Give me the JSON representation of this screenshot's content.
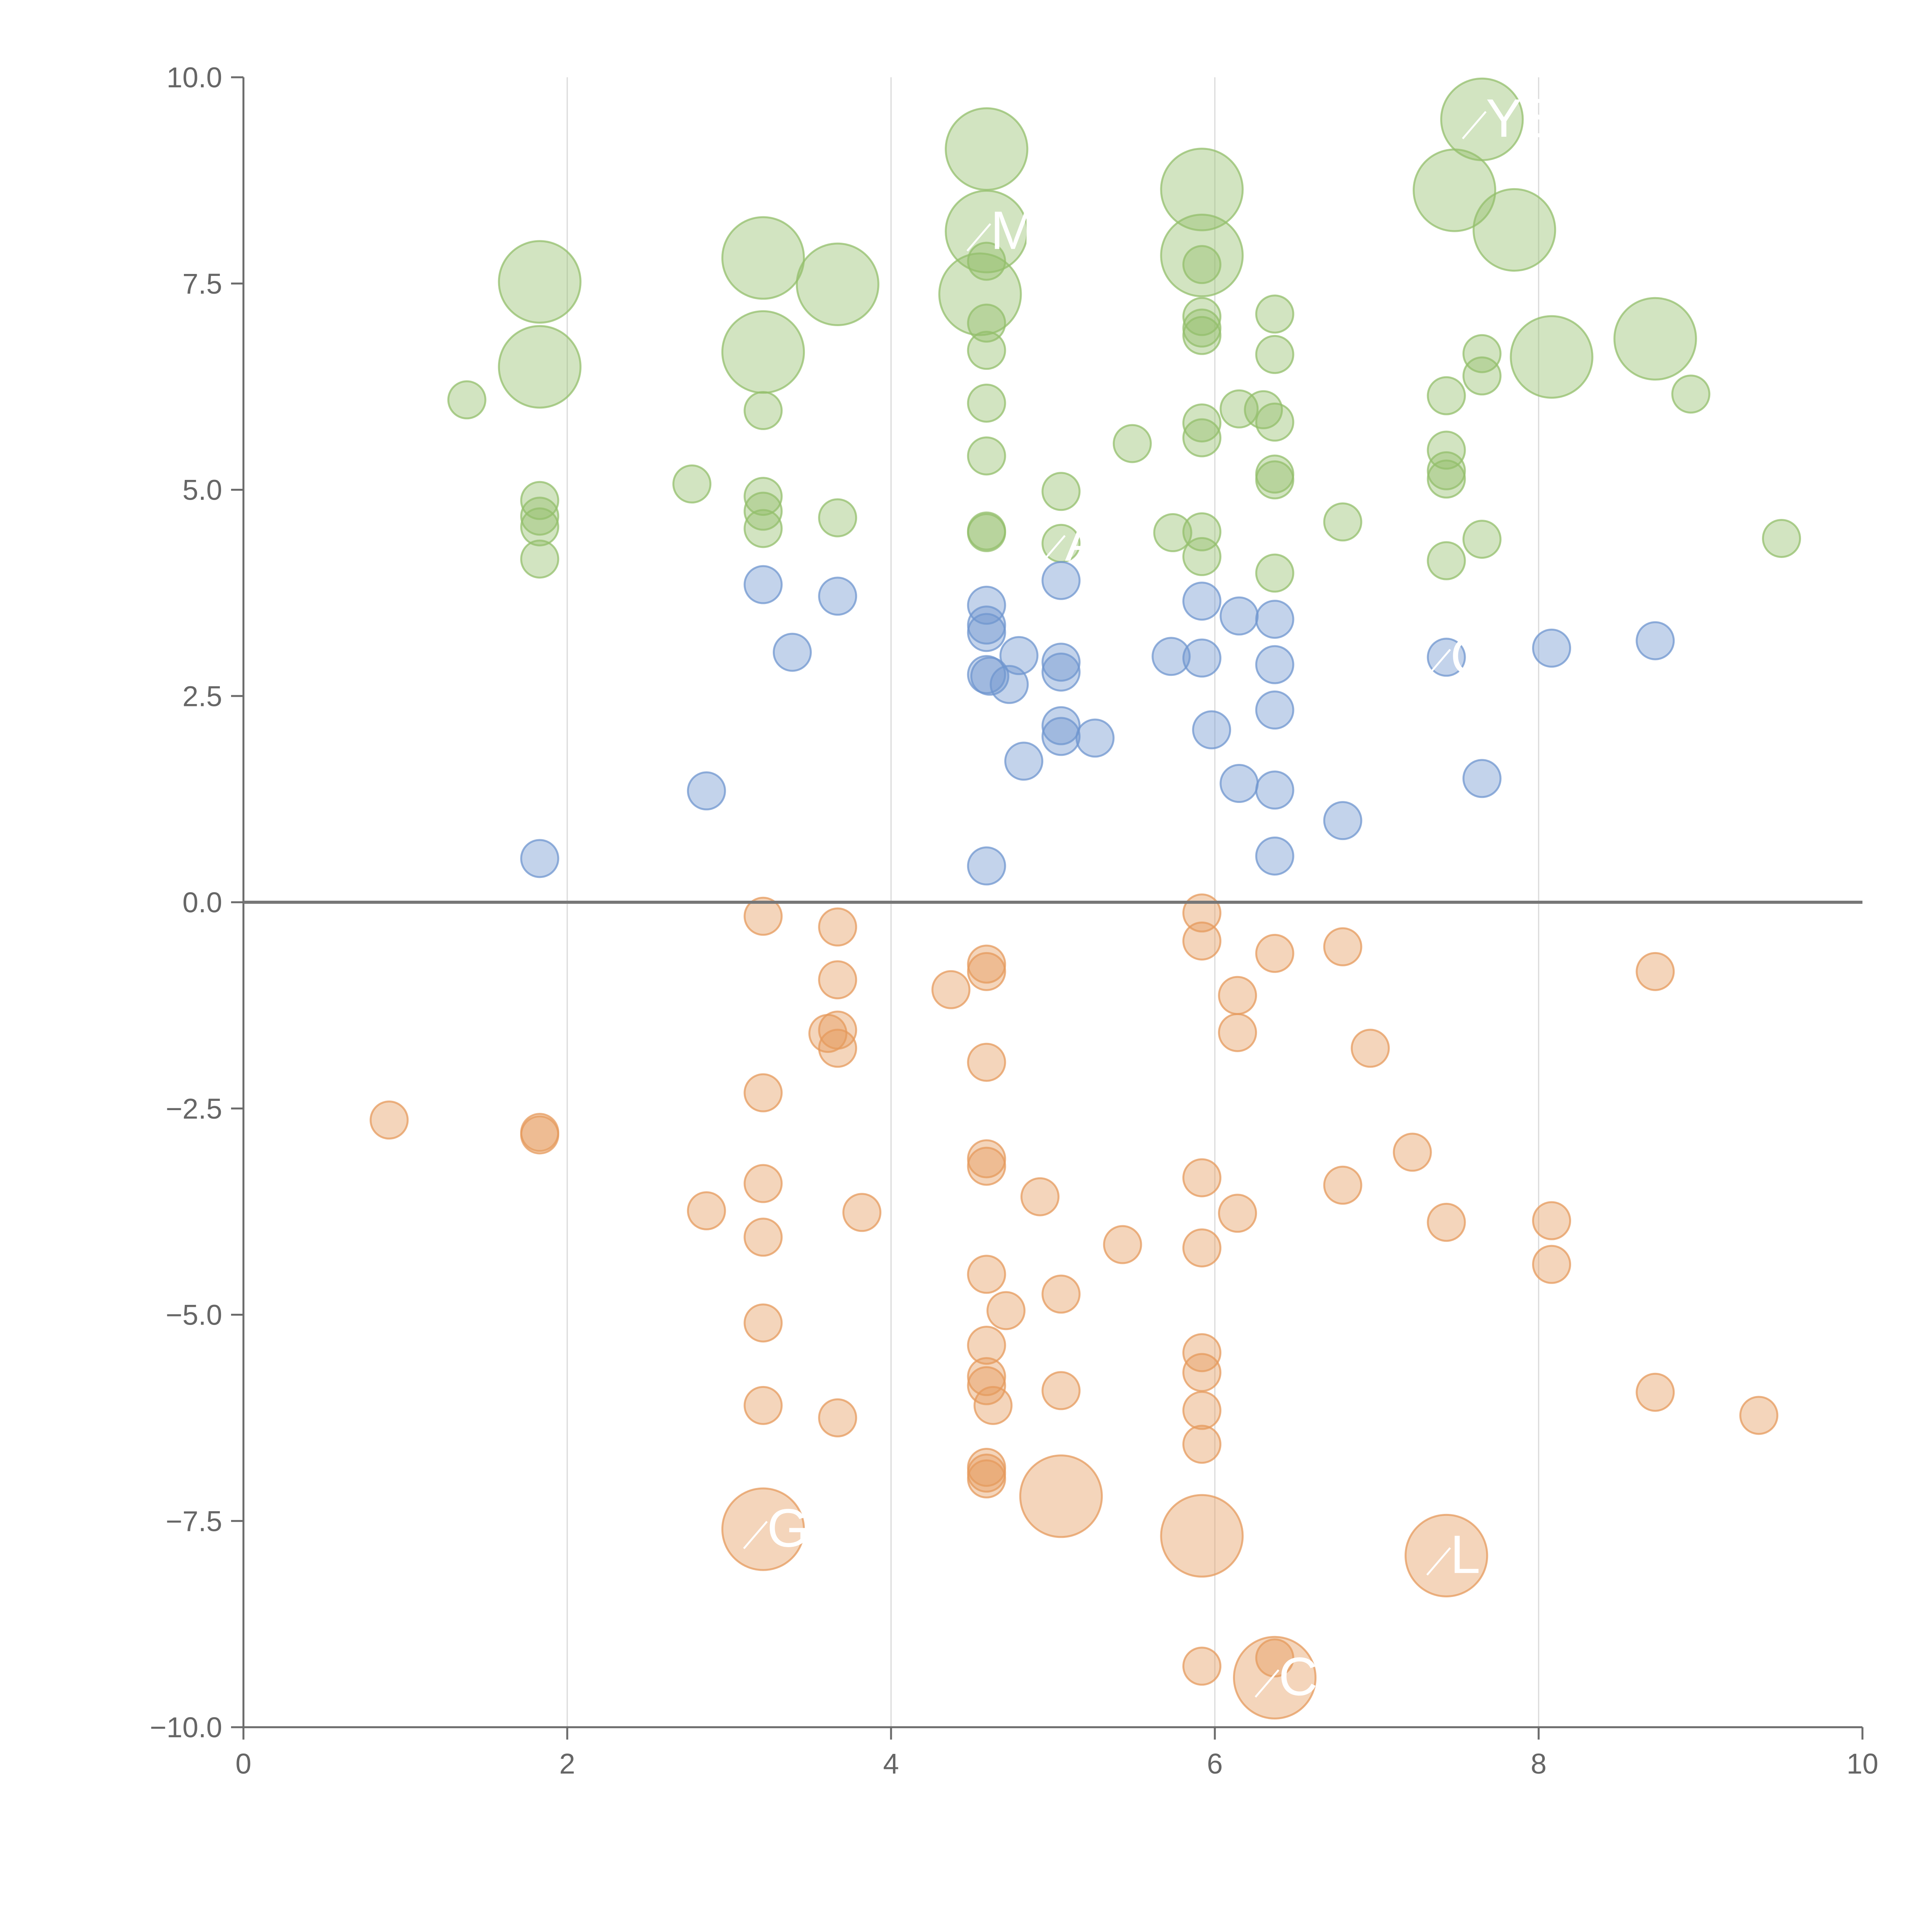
{
  "chart_data": {
    "type": "scatter",
    "variant": "bubble",
    "title": "",
    "xlabel": "",
    "ylabel": "",
    "xlim": [
      0,
      10
    ],
    "ylim": [
      -10,
      10
    ],
    "x_ticks": [
      0,
      2,
      4,
      6,
      8,
      10
    ],
    "x_tick_labels": [
      "0",
      "2",
      "4",
      "6",
      "8",
      "10"
    ],
    "y_ticks": [
      10,
      7.5,
      5,
      2.5,
      0,
      -2.5,
      -5,
      -7.5,
      -10
    ],
    "y_tick_labels": [
      "10.0",
      "7.5",
      "5.0",
      "2.5",
      "0.0",
      "−2.5",
      "−5.0",
      "−7.5",
      "−10.0"
    ],
    "vertical_gridlines_at": [
      2,
      4,
      6,
      8
    ],
    "reference_line_y": 0,
    "legend": "none",
    "colors": {
      "green": "#93bf6b",
      "blue": "#6f95cf",
      "orange": "#e59a5c"
    },
    "series": [
      {
        "name": "green",
        "color_key": "green",
        "points": [
          {
            "x": 1.83,
            "y": 7.52,
            "s": 2.2
          },
          {
            "x": 1.83,
            "y": 6.49,
            "s": 2.2
          },
          {
            "x": 1.38,
            "y": 6.09,
            "s": 1
          },
          {
            "x": 1.83,
            "y": 4.87,
            "s": 1
          },
          {
            "x": 1.83,
            "y": 4.68,
            "s": 1
          },
          {
            "x": 1.83,
            "y": 4.55,
            "s": 1
          },
          {
            "x": 1.83,
            "y": 4.16,
            "s": 1
          },
          {
            "x": 2.77,
            "y": 5.07,
            "s": 1
          },
          {
            "x": 3.21,
            "y": 7.81,
            "s": 2.2
          },
          {
            "x": 3.21,
            "y": 6.67,
            "s": 2.2
          },
          {
            "x": 3.67,
            "y": 7.49,
            "s": 2.2
          },
          {
            "x": 3.21,
            "y": 5.96,
            "s": 1
          },
          {
            "x": 3.21,
            "y": 4.92,
            "s": 1
          },
          {
            "x": 3.21,
            "y": 4.74,
            "s": 1
          },
          {
            "x": 3.21,
            "y": 4.53,
            "s": 1
          },
          {
            "x": 3.67,
            "y": 4.66,
            "s": 1
          },
          {
            "x": 4.59,
            "y": 9.13,
            "s": 2.2
          },
          {
            "x": 4.59,
            "y": 8.13,
            "s": 2.2
          },
          {
            "x": 4.55,
            "y": 7.37,
            "s": 2.2
          },
          {
            "x": 4.59,
            "y": 7.77,
            "s": 1
          },
          {
            "x": 4.59,
            "y": 7.02,
            "s": 1
          },
          {
            "x": 4.59,
            "y": 6.69,
            "s": 1
          },
          {
            "x": 4.59,
            "y": 6.05,
            "s": 1
          },
          {
            "x": 4.59,
            "y": 5.41,
            "s": 1
          },
          {
            "x": 4.59,
            "y": 4.5,
            "s": 1
          },
          {
            "x": 4.59,
            "y": 4.48,
            "s": 1
          },
          {
            "x": 5.05,
            "y": 4.98,
            "s": 1
          },
          {
            "x": 5.05,
            "y": 4.35,
            "s": 1
          },
          {
            "x": 5.49,
            "y": 5.56,
            "s": 1
          },
          {
            "x": 5.92,
            "y": 8.64,
            "s": 2.2
          },
          {
            "x": 5.92,
            "y": 7.84,
            "s": 2.2
          },
          {
            "x": 5.92,
            "y": 7.73,
            "s": 1
          },
          {
            "x": 5.92,
            "y": 7.1,
            "s": 1
          },
          {
            "x": 5.92,
            "y": 6.96,
            "s": 1
          },
          {
            "x": 5.92,
            "y": 6.87,
            "s": 1
          },
          {
            "x": 5.92,
            "y": 5.81,
            "s": 1
          },
          {
            "x": 5.92,
            "y": 5.63,
            "s": 1
          },
          {
            "x": 5.92,
            "y": 4.49,
            "s": 1
          },
          {
            "x": 5.92,
            "y": 4.19,
            "s": 1
          },
          {
            "x": 5.74,
            "y": 4.48,
            "s": 1
          },
          {
            "x": 6.15,
            "y": 5.98,
            "s": 1
          },
          {
            "x": 6.3,
            "y": 5.97,
            "s": 1
          },
          {
            "x": 6.37,
            "y": 7.13,
            "s": 1
          },
          {
            "x": 6.37,
            "y": 6.64,
            "s": 1
          },
          {
            "x": 6.37,
            "y": 5.82,
            "s": 1
          },
          {
            "x": 6.37,
            "y": 5.19,
            "s": 1
          },
          {
            "x": 6.37,
            "y": 5.12,
            "s": 1
          },
          {
            "x": 6.37,
            "y": 3.99,
            "s": 1
          },
          {
            "x": 6.79,
            "y": 4.61,
            "s": 1
          },
          {
            "x": 7.48,
            "y": 8.63,
            "s": 2.2
          },
          {
            "x": 7.65,
            "y": 9.49,
            "s": 2.2
          },
          {
            "x": 7.85,
            "y": 8.15,
            "s": 2.2
          },
          {
            "x": 8.08,
            "y": 6.61,
            "s": 2.2
          },
          {
            "x": 8.72,
            "y": 6.83,
            "s": 2.2
          },
          {
            "x": 7.43,
            "y": 6.14,
            "s": 1
          },
          {
            "x": 7.43,
            "y": 5.48,
            "s": 1
          },
          {
            "x": 7.43,
            "y": 5.23,
            "s": 1
          },
          {
            "x": 7.43,
            "y": 5.13,
            "s": 1
          },
          {
            "x": 7.43,
            "y": 4.14,
            "s": 1
          },
          {
            "x": 7.65,
            "y": 6.65,
            "s": 1
          },
          {
            "x": 7.65,
            "y": 6.38,
            "s": 1
          },
          {
            "x": 7.65,
            "y": 4.4,
            "s": 1
          },
          {
            "x": 8.94,
            "y": 6.16,
            "s": 1
          },
          {
            "x": 9.5,
            "y": 4.41,
            "s": 1
          }
        ]
      },
      {
        "name": "blue",
        "color_key": "blue",
        "points": [
          {
            "x": 1.83,
            "y": 0.53,
            "s": 1
          },
          {
            "x": 2.86,
            "y": 1.35,
            "s": 1
          },
          {
            "x": 3.21,
            "y": 3.85,
            "s": 1
          },
          {
            "x": 3.39,
            "y": 3.03,
            "s": 1
          },
          {
            "x": 3.67,
            "y": 3.71,
            "s": 1
          },
          {
            "x": 4.59,
            "y": 3.6,
            "s": 1
          },
          {
            "x": 4.59,
            "y": 3.36,
            "s": 1
          },
          {
            "x": 4.59,
            "y": 3.27,
            "s": 1
          },
          {
            "x": 4.59,
            "y": 2.76,
            "s": 1
          },
          {
            "x": 4.61,
            "y": 2.74,
            "s": 1
          },
          {
            "x": 4.59,
            "y": 0.44,
            "s": 1
          },
          {
            "x": 4.73,
            "y": 2.64,
            "s": 1
          },
          {
            "x": 4.79,
            "y": 2.99,
            "s": 1
          },
          {
            "x": 4.82,
            "y": 1.71,
            "s": 1
          },
          {
            "x": 5.05,
            "y": 3.9,
            "s": 1
          },
          {
            "x": 5.05,
            "y": 2.91,
            "s": 1
          },
          {
            "x": 5.05,
            "y": 2.79,
            "s": 1
          },
          {
            "x": 5.05,
            "y": 2.14,
            "s": 1
          },
          {
            "x": 5.05,
            "y": 2.01,
            "s": 1
          },
          {
            "x": 5.26,
            "y": 1.99,
            "s": 1
          },
          {
            "x": 5.73,
            "y": 2.98,
            "s": 1
          },
          {
            "x": 5.92,
            "y": 3.65,
            "s": 1
          },
          {
            "x": 5.92,
            "y": 2.96,
            "s": 1
          },
          {
            "x": 5.98,
            "y": 2.09,
            "s": 1
          },
          {
            "x": 6.15,
            "y": 3.47,
            "s": 1
          },
          {
            "x": 6.15,
            "y": 1.44,
            "s": 1
          },
          {
            "x": 6.37,
            "y": 3.43,
            "s": 1
          },
          {
            "x": 6.37,
            "y": 2.88,
            "s": 1
          },
          {
            "x": 6.37,
            "y": 2.33,
            "s": 1
          },
          {
            "x": 6.37,
            "y": 1.36,
            "s": 1
          },
          {
            "x": 6.37,
            "y": 0.56,
            "s": 1
          },
          {
            "x": 6.79,
            "y": 0.99,
            "s": 1
          },
          {
            "x": 7.43,
            "y": 2.97,
            "s": 1
          },
          {
            "x": 7.65,
            "y": 1.5,
            "s": 1
          },
          {
            "x": 8.08,
            "y": 3.08,
            "s": 1
          },
          {
            "x": 8.72,
            "y": 3.17,
            "s": 1
          }
        ]
      },
      {
        "name": "orange",
        "color_key": "orange",
        "points": [
          {
            "x": 0.9,
            "y": -2.64,
            "s": 1
          },
          {
            "x": 1.83,
            "y": -2.79,
            "s": 1
          },
          {
            "x": 1.83,
            "y": -2.82,
            "s": 1
          },
          {
            "x": 2.86,
            "y": -3.74,
            "s": 1
          },
          {
            "x": 3.21,
            "y": -0.17,
            "s": 1
          },
          {
            "x": 3.21,
            "y": -2.31,
            "s": 1
          },
          {
            "x": 3.21,
            "y": -3.41,
            "s": 1
          },
          {
            "x": 3.21,
            "y": -4.06,
            "s": 1
          },
          {
            "x": 3.21,
            "y": -5.1,
            "s": 1
          },
          {
            "x": 3.21,
            "y": -6.1,
            "s": 1
          },
          {
            "x": 3.21,
            "y": -7.6,
            "s": 2.2
          },
          {
            "x": 3.61,
            "y": -1.59,
            "s": 1
          },
          {
            "x": 3.67,
            "y": -0.3,
            "s": 1
          },
          {
            "x": 3.67,
            "y": -0.94,
            "s": 1
          },
          {
            "x": 3.67,
            "y": -1.55,
            "s": 1
          },
          {
            "x": 3.67,
            "y": -1.77,
            "s": 1
          },
          {
            "x": 3.67,
            "y": -6.25,
            "s": 1
          },
          {
            "x": 3.82,
            "y": -3.76,
            "s": 1
          },
          {
            "x": 4.37,
            "y": -1.06,
            "s": 1
          },
          {
            "x": 4.59,
            "y": -0.75,
            "s": 1
          },
          {
            "x": 4.59,
            "y": -0.84,
            "s": 1
          },
          {
            "x": 4.59,
            "y": -1.94,
            "s": 1
          },
          {
            "x": 4.59,
            "y": -3.11,
            "s": 1
          },
          {
            "x": 4.59,
            "y": -3.2,
            "s": 1
          },
          {
            "x": 4.59,
            "y": -4.51,
            "s": 1
          },
          {
            "x": 4.59,
            "y": -5.37,
            "s": 1
          },
          {
            "x": 4.59,
            "y": -5.75,
            "s": 1
          },
          {
            "x": 4.59,
            "y": -5.86,
            "s": 1
          },
          {
            "x": 4.63,
            "y": -6.1,
            "s": 1
          },
          {
            "x": 4.59,
            "y": -6.85,
            "s": 1
          },
          {
            "x": 4.59,
            "y": -6.92,
            "s": 1
          },
          {
            "x": 4.59,
            "y": -6.99,
            "s": 1
          },
          {
            "x": 4.71,
            "y": -4.95,
            "s": 1
          },
          {
            "x": 4.92,
            "y": -3.57,
            "s": 1
          },
          {
            "x": 5.05,
            "y": -4.75,
            "s": 1
          },
          {
            "x": 5.05,
            "y": -5.92,
            "s": 1
          },
          {
            "x": 5.05,
            "y": -7.2,
            "s": 2.2
          },
          {
            "x": 5.43,
            "y": -4.15,
            "s": 1
          },
          {
            "x": 5.92,
            "y": -0.13,
            "s": 1
          },
          {
            "x": 5.92,
            "y": -0.47,
            "s": 1
          },
          {
            "x": 5.92,
            "y": -3.34,
            "s": 1
          },
          {
            "x": 5.92,
            "y": -4.19,
            "s": 1
          },
          {
            "x": 5.92,
            "y": -5.46,
            "s": 1
          },
          {
            "x": 5.92,
            "y": -5.7,
            "s": 1
          },
          {
            "x": 5.92,
            "y": -6.16,
            "s": 1
          },
          {
            "x": 5.92,
            "y": -6.57,
            "s": 1
          },
          {
            "x": 5.92,
            "y": -7.68,
            "s": 2.2
          },
          {
            "x": 5.92,
            "y": -9.26,
            "s": 1
          },
          {
            "x": 6.14,
            "y": -1.13,
            "s": 1
          },
          {
            "x": 6.14,
            "y": -1.58,
            "s": 1
          },
          {
            "x": 6.14,
            "y": -3.77,
            "s": 1
          },
          {
            "x": 6.37,
            "y": -0.62,
            "s": 1
          },
          {
            "x": 6.37,
            "y": -9.16,
            "s": 1
          },
          {
            "x": 6.37,
            "y": -9.4,
            "s": 2.2
          },
          {
            "x": 6.79,
            "y": -0.54,
            "s": 1
          },
          {
            "x": 6.79,
            "y": -3.43,
            "s": 1
          },
          {
            "x": 6.96,
            "y": -1.77,
            "s": 1
          },
          {
            "x": 7.22,
            "y": -3.03,
            "s": 1
          },
          {
            "x": 7.43,
            "y": -3.88,
            "s": 1
          },
          {
            "x": 7.43,
            "y": -7.92,
            "s": 2.2
          },
          {
            "x": 8.08,
            "y": -3.86,
            "s": 1
          },
          {
            "x": 8.08,
            "y": -4.39,
            "s": 1
          },
          {
            "x": 8.72,
            "y": -0.84,
            "s": 1
          },
          {
            "x": 8.72,
            "y": -5.94,
            "s": 1
          },
          {
            "x": 9.36,
            "y": -6.22,
            "s": 1
          }
        ]
      }
    ],
    "annotations": [
      {
        "text": "YS",
        "x": 7.65,
        "y": 9.49
      },
      {
        "text": "MA",
        "x": 4.59,
        "y": 8.13
      },
      {
        "text": "A",
        "x": 5.05,
        "y": 4.35
      },
      {
        "text": "C",
        "x": 7.43,
        "y": 2.97
      },
      {
        "text": "G",
        "x": 3.21,
        "y": -7.6
      },
      {
        "text": "L",
        "x": 7.43,
        "y": -7.92
      },
      {
        "text": "C",
        "x": 6.37,
        "y": -9.4
      }
    ]
  }
}
